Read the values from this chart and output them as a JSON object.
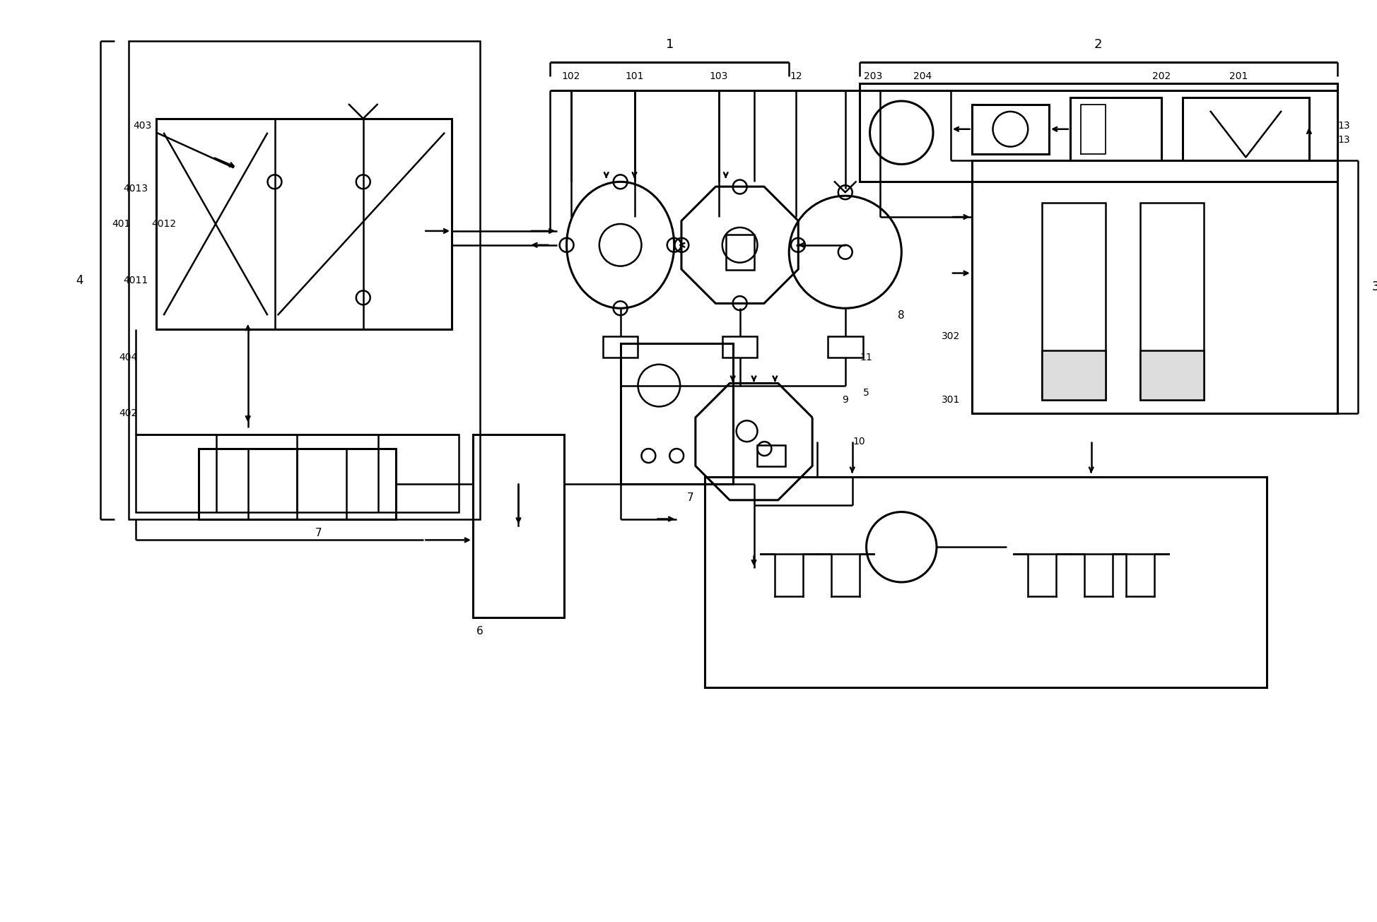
{
  "bg_color": "#ffffff",
  "line_color": "#000000",
  "label_color": "#000000",
  "figsize": [
    19.48,
    13.05
  ],
  "dpi": 100,
  "lw": 1.8,
  "lw2": 2.2
}
